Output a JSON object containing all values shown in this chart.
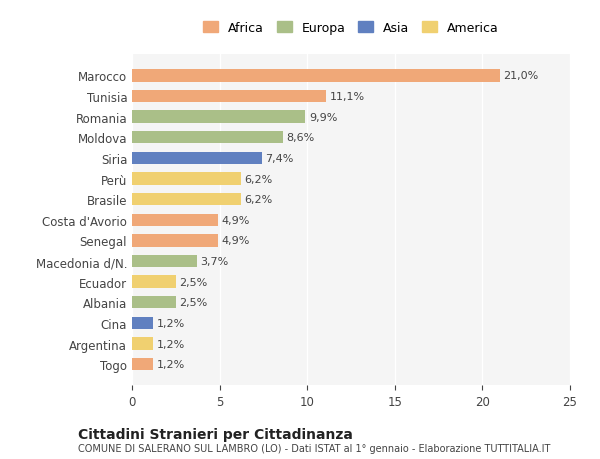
{
  "categories": [
    "Marocco",
    "Tunisia",
    "Romania",
    "Moldova",
    "Siria",
    "Perù",
    "Brasile",
    "Costa d'Avorio",
    "Senegal",
    "Macedonia d/N.",
    "Ecuador",
    "Albania",
    "Cina",
    "Argentina",
    "Togo"
  ],
  "values": [
    21.0,
    11.1,
    9.9,
    8.6,
    7.4,
    6.2,
    6.2,
    4.9,
    4.9,
    3.7,
    2.5,
    2.5,
    1.2,
    1.2,
    1.2
  ],
  "labels": [
    "21,0%",
    "11,1%",
    "9,9%",
    "8,6%",
    "7,4%",
    "6,2%",
    "6,2%",
    "4,9%",
    "4,9%",
    "3,7%",
    "2,5%",
    "2,5%",
    "1,2%",
    "1,2%",
    "1,2%"
  ],
  "continents": [
    "Africa",
    "Africa",
    "Europa",
    "Europa",
    "Asia",
    "America",
    "America",
    "Africa",
    "Africa",
    "Europa",
    "America",
    "Europa",
    "Asia",
    "America",
    "Africa"
  ],
  "colors": {
    "Africa": "#F0A878",
    "Europa": "#AABF88",
    "Asia": "#6080C0",
    "America": "#F0D070"
  },
  "legend_order": [
    "Africa",
    "Europa",
    "Asia",
    "America"
  ],
  "xlim": [
    0,
    25
  ],
  "xticks": [
    0,
    5,
    10,
    15,
    20,
    25
  ],
  "title": "Cittadini Stranieri per Cittadinanza",
  "subtitle": "COMUNE DI SALERANO SUL LAMBRO (LO) - Dati ISTAT al 1° gennaio - Elaborazione TUTTITALIA.IT",
  "background_color": "#ffffff",
  "plot_bg_color": "#f5f5f5"
}
